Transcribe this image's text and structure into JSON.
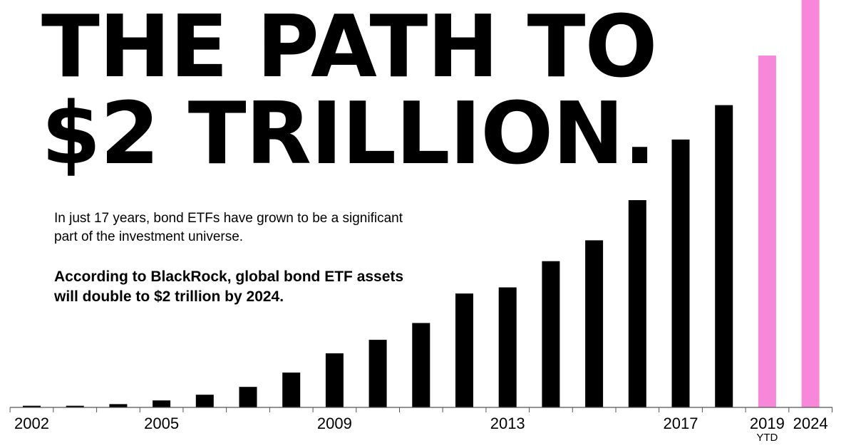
{
  "headline": {
    "line1": "THE PATH TO",
    "line2": "$2 TRILLION."
  },
  "intro_text": "In just 17 years, bond ETFs have grown to be a significant part of the investment universe.",
  "emphasis_text": "According to BlackRock, global bond ETF assets will double to $2 trillion by 2024.",
  "colors": {
    "actual": "#000000",
    "highlight": "#f788d9",
    "axis": "#555555"
  },
  "chart_data": {
    "type": "bar",
    "title": "",
    "xlabel": "",
    "ylabel": "",
    "y_axis_shown": false,
    "grid": false,
    "categories": [
      "2002",
      "2003",
      "2004",
      "2005",
      "2006",
      "2007",
      "2008",
      "2009",
      "2010",
      "2011",
      "2012",
      "2013",
      "2014",
      "2015",
      "2016",
      "2017",
      "2018",
      "2019",
      "2024"
    ],
    "visible_tick_labels": [
      "2002",
      "2005",
      "2009",
      "2013",
      "2017",
      "2019",
      "2024"
    ],
    "tick_sublabel": {
      "category": "2019",
      "text": "YTD"
    },
    "relative_values": [
      0.004,
      0.004,
      0.008,
      0.017,
      0.031,
      0.05,
      0.085,
      0.132,
      0.165,
      0.206,
      0.278,
      0.293,
      0.357,
      0.408,
      0.506,
      0.654,
      0.738,
      0.859,
      1.0
    ],
    "highlighted_categories": [
      "2019",
      "2024"
    ],
    "note": "Final bar extends beyond the top of the frame"
  }
}
